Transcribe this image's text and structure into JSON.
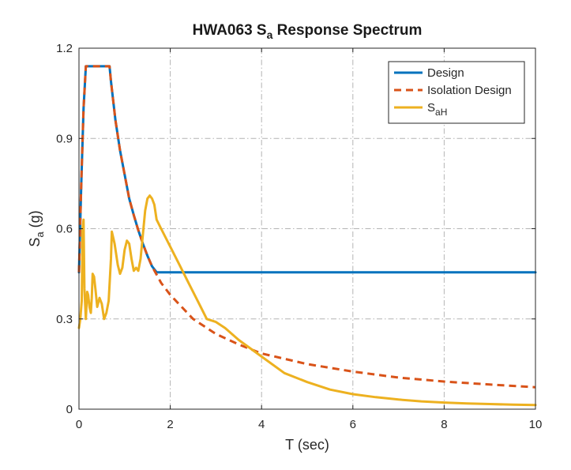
{
  "chart_data": {
    "type": "line",
    "title": {
      "main": "HWA063 S",
      "sub": "a",
      "rest": " Response Spectrum"
    },
    "xlabel": "T (sec)",
    "ylabel": {
      "main": "S",
      "sub": "a",
      "rest": " (g)"
    },
    "xlim": [
      0,
      10
    ],
    "ylim": [
      0,
      1.2
    ],
    "xticks": [
      0,
      2,
      4,
      6,
      8,
      10
    ],
    "yticks": [
      0,
      0.3,
      0.6,
      0.9,
      1.2
    ],
    "xtick_labels": [
      "0",
      "2",
      "4",
      "6",
      "8",
      "10"
    ],
    "ytick_labels": [
      "0",
      "0.3",
      "0.6",
      "0.9",
      "1.2"
    ],
    "grid": true,
    "legend_position": "top-right",
    "series": [
      {
        "name": "Design",
        "legend_main": "Design",
        "legend_sub": "",
        "color": "#0072BD",
        "style": "solid",
        "x": [
          0,
          0.05,
          0.1,
          0.15,
          0.2,
          0.4,
          0.67,
          0.7,
          0.8,
          0.9,
          1.0,
          1.1,
          1.2,
          1.3,
          1.4,
          1.5,
          1.6,
          1.7,
          2,
          3,
          4,
          5,
          6,
          7,
          8,
          9,
          10
        ],
        "y": [
          0.455,
          0.75,
          1.0,
          1.14,
          1.14,
          1.14,
          1.14,
          1.09,
          0.96,
          0.86,
          0.78,
          0.7,
          0.645,
          0.595,
          0.55,
          0.51,
          0.475,
          0.455,
          0.455,
          0.455,
          0.455,
          0.455,
          0.455,
          0.455,
          0.455,
          0.455,
          0.455
        ]
      },
      {
        "name": "Isolation Design",
        "legend_main": "Isolation Design",
        "legend_sub": "",
        "color": "#D95319",
        "style": "dashed",
        "x": [
          0,
          0.05,
          0.1,
          0.15,
          0.2,
          0.4,
          0.67,
          0.7,
          0.8,
          0.9,
          1.0,
          1.1,
          1.2,
          1.3,
          1.4,
          1.5,
          1.6,
          1.8,
          2.0,
          2.5,
          3.0,
          3.5,
          4.0,
          5.0,
          6.0,
          7.0,
          8.0,
          9.0,
          10.0
        ],
        "y": [
          0.455,
          0.75,
          1.0,
          1.14,
          1.14,
          1.14,
          1.14,
          1.09,
          0.96,
          0.86,
          0.78,
          0.7,
          0.645,
          0.595,
          0.55,
          0.51,
          0.475,
          0.42,
          0.38,
          0.3,
          0.25,
          0.215,
          0.185,
          0.15,
          0.125,
          0.105,
          0.092,
          0.082,
          0.073
        ]
      },
      {
        "name": "SaH",
        "legend_main": "S",
        "legend_sub": "aH",
        "color": "#EDB120",
        "style": "solid",
        "x": [
          0,
          0.03,
          0.06,
          0.08,
          0.1,
          0.12,
          0.15,
          0.18,
          0.2,
          0.23,
          0.26,
          0.28,
          0.3,
          0.33,
          0.36,
          0.4,
          0.45,
          0.5,
          0.55,
          0.6,
          0.65,
          0.7,
          0.72,
          0.78,
          0.85,
          0.9,
          0.95,
          1.0,
          1.05,
          1.1,
          1.15,
          1.2,
          1.25,
          1.3,
          1.35,
          1.4,
          1.45,
          1.5,
          1.55,
          1.6,
          1.65,
          1.7,
          1.8,
          2.0,
          2.2,
          2.4,
          2.6,
          2.8,
          3.0,
          3.2,
          3.5,
          4.0,
          4.5,
          5.0,
          5.5,
          6.0,
          6.5,
          7.0,
          7.5,
          8.0,
          8.5,
          9.0,
          9.5,
          10.0
        ],
        "y": [
          0.27,
          0.3,
          0.36,
          0.6,
          0.63,
          0.4,
          0.3,
          0.39,
          0.38,
          0.34,
          0.32,
          0.37,
          0.45,
          0.44,
          0.4,
          0.34,
          0.37,
          0.35,
          0.3,
          0.32,
          0.36,
          0.5,
          0.59,
          0.55,
          0.48,
          0.45,
          0.47,
          0.53,
          0.56,
          0.55,
          0.5,
          0.46,
          0.47,
          0.46,
          0.5,
          0.58,
          0.66,
          0.7,
          0.71,
          0.7,
          0.68,
          0.63,
          0.6,
          0.54,
          0.48,
          0.42,
          0.36,
          0.3,
          0.29,
          0.27,
          0.23,
          0.175,
          0.12,
          0.09,
          0.065,
          0.05,
          0.04,
          0.032,
          0.026,
          0.022,
          0.019,
          0.017,
          0.015,
          0.014
        ]
      }
    ]
  }
}
